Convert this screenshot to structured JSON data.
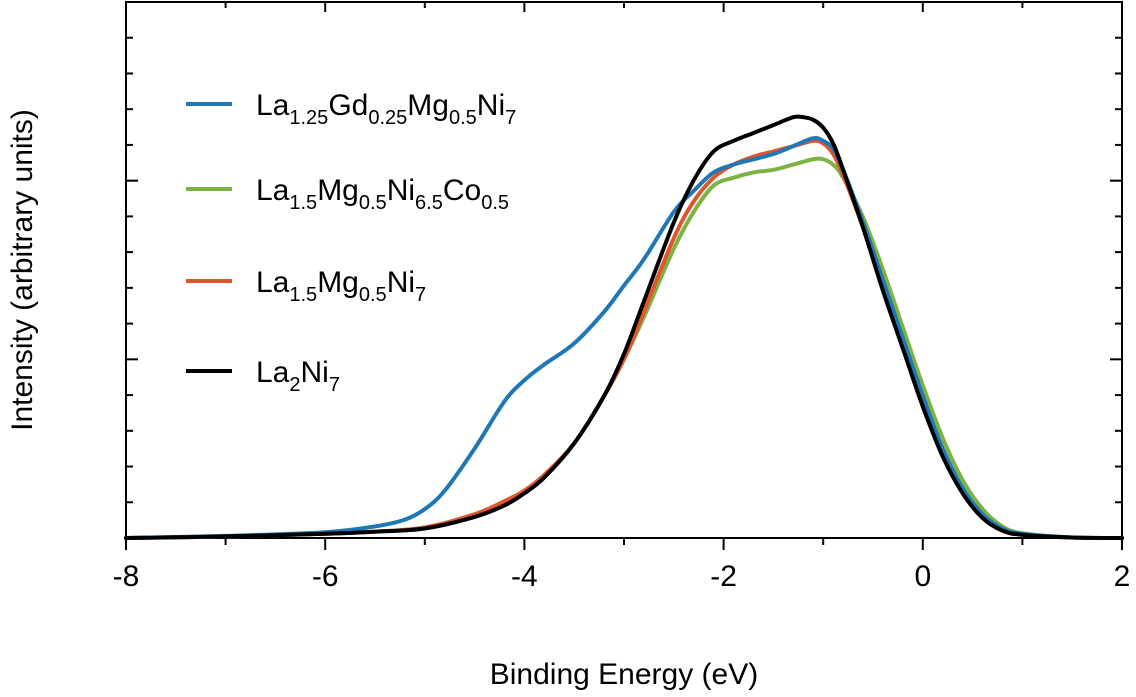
{
  "chart_data": {
    "type": "line",
    "title": "",
    "xlabel": "Binding Energy (eV)",
    "ylabel": "Intensity (arbitrary units)",
    "xlim": [
      -8,
      2
    ],
    "ylim": [
      0,
      1.0
    ],
    "xticks": [
      -8,
      -6,
      -4,
      -2,
      0,
      2
    ],
    "xtick_labels": [
      "-8",
      "-6",
      "-4",
      "-2",
      "0",
      "2"
    ],
    "y_tick_labels_shown": false,
    "grid": false,
    "legend_position": "top-left",
    "series": [
      {
        "name": "La1.25Gd0.25Mg0.5Ni7",
        "legend": [
          {
            "t": "La"
          },
          {
            "t": "1.25",
            "sub": true
          },
          {
            "t": "Gd"
          },
          {
            "t": "0.25",
            "sub": true
          },
          {
            "t": "Mg"
          },
          {
            "t": "0.5",
            "sub": true
          },
          {
            "t": "Ni"
          },
          {
            "t": "7",
            "sub": true
          }
        ],
        "color": "#1f77b4",
        "x": [
          -8,
          -7,
          -6,
          -5.5,
          -5.2,
          -5.0,
          -4.8,
          -4.5,
          -4.2,
          -4.0,
          -3.8,
          -3.5,
          -3.2,
          -3.0,
          -2.8,
          -2.5,
          -2.3,
          -2.1,
          -1.9,
          -1.7,
          -1.5,
          -1.3,
          -1.1,
          -1.0,
          -0.9,
          -0.8,
          -0.6,
          -0.4,
          -0.2,
          0.0,
          0.2,
          0.4,
          0.6,
          0.8,
          1.0,
          1.5,
          2.0
        ],
        "y": [
          0.0,
          0.004,
          0.011,
          0.022,
          0.035,
          0.055,
          0.09,
          0.17,
          0.26,
          0.3,
          0.33,
          0.37,
          0.43,
          0.48,
          0.53,
          0.62,
          0.66,
          0.695,
          0.71,
          0.72,
          0.73,
          0.745,
          0.76,
          0.755,
          0.74,
          0.7,
          0.6,
          0.49,
          0.38,
          0.27,
          0.17,
          0.095,
          0.045,
          0.018,
          0.008,
          0.001,
          0.0
        ]
      },
      {
        "name": "La1.5Mg0.5Ni6.5Co0.5",
        "legend": [
          {
            "t": "La"
          },
          {
            "t": "1.5",
            "sub": true
          },
          {
            "t": "Mg"
          },
          {
            "t": "0.5",
            "sub": true
          },
          {
            "t": "Ni"
          },
          {
            "t": "6.5",
            "sub": true
          },
          {
            "t": "Co"
          },
          {
            "t": "0.5",
            "sub": true
          }
        ],
        "color": "#7cb342",
        "x": [
          -8,
          -7,
          -6,
          -5.5,
          -5.0,
          -4.5,
          -4.2,
          -4.0,
          -3.8,
          -3.5,
          -3.2,
          -3.0,
          -2.8,
          -2.5,
          -2.3,
          -2.1,
          -1.9,
          -1.7,
          -1.5,
          -1.3,
          -1.1,
          -1.0,
          -0.9,
          -0.8,
          -0.6,
          -0.4,
          -0.2,
          0.0,
          0.2,
          0.4,
          0.6,
          0.8,
          1.0,
          1.5,
          2.0
        ],
        "y": [
          0.0,
          0.003,
          0.008,
          0.012,
          0.02,
          0.045,
          0.07,
          0.09,
          0.12,
          0.18,
          0.27,
          0.34,
          0.42,
          0.55,
          0.62,
          0.67,
          0.685,
          0.695,
          0.7,
          0.71,
          0.72,
          0.72,
          0.71,
          0.685,
          0.61,
          0.51,
          0.4,
          0.29,
          0.19,
          0.11,
          0.055,
          0.022,
          0.009,
          0.001,
          0.0
        ]
      },
      {
        "name": "La1.5Mg0.5Ni7",
        "legend": [
          {
            "t": "La"
          },
          {
            "t": "1.5",
            "sub": true
          },
          {
            "t": "Mg"
          },
          {
            "t": "0.5",
            "sub": true
          },
          {
            "t": "Ni"
          },
          {
            "t": "7",
            "sub": true
          }
        ],
        "color": "#e0562d",
        "x": [
          -8,
          -7,
          -6,
          -5.5,
          -5.0,
          -4.5,
          -4.2,
          -4.0,
          -3.8,
          -3.5,
          -3.2,
          -3.0,
          -2.8,
          -2.5,
          -2.3,
          -2.1,
          -1.9,
          -1.7,
          -1.5,
          -1.3,
          -1.1,
          -1.0,
          -0.9,
          -0.8,
          -0.6,
          -0.4,
          -0.2,
          0.0,
          0.2,
          0.4,
          0.6,
          0.8,
          1.0,
          1.5,
          2.0
        ],
        "y": [
          0.0,
          0.003,
          0.008,
          0.012,
          0.02,
          0.045,
          0.07,
          0.09,
          0.12,
          0.18,
          0.27,
          0.34,
          0.43,
          0.57,
          0.64,
          0.685,
          0.71,
          0.725,
          0.735,
          0.745,
          0.755,
          0.75,
          0.73,
          0.69,
          0.59,
          0.48,
          0.37,
          0.26,
          0.165,
          0.09,
          0.042,
          0.016,
          0.007,
          0.001,
          0.0
        ]
      },
      {
        "name": "La2Ni7",
        "legend": [
          {
            "t": "La"
          },
          {
            "t": "2",
            "sub": true
          },
          {
            "t": "Ni"
          },
          {
            "t": "7",
            "sub": true
          }
        ],
        "color": "#000000",
        "x": [
          -8,
          -7,
          -6,
          -5.5,
          -5.0,
          -4.5,
          -4.2,
          -4.0,
          -3.8,
          -3.5,
          -3.2,
          -3.0,
          -2.8,
          -2.5,
          -2.3,
          -2.1,
          -1.9,
          -1.7,
          -1.5,
          -1.3,
          -1.2,
          -1.1,
          -1.0,
          -0.9,
          -0.8,
          -0.6,
          -0.4,
          -0.2,
          0.0,
          0.2,
          0.4,
          0.6,
          0.8,
          1.0,
          1.5,
          2.0
        ],
        "y": [
          0.0,
          0.003,
          0.008,
          0.012,
          0.018,
          0.04,
          0.062,
          0.085,
          0.115,
          0.18,
          0.27,
          0.35,
          0.45,
          0.6,
          0.68,
          0.735,
          0.755,
          0.77,
          0.785,
          0.8,
          0.8,
          0.795,
          0.78,
          0.75,
          0.7,
          0.59,
          0.47,
          0.36,
          0.25,
          0.155,
          0.085,
          0.038,
          0.014,
          0.006,
          0.001,
          0.0
        ]
      }
    ]
  }
}
